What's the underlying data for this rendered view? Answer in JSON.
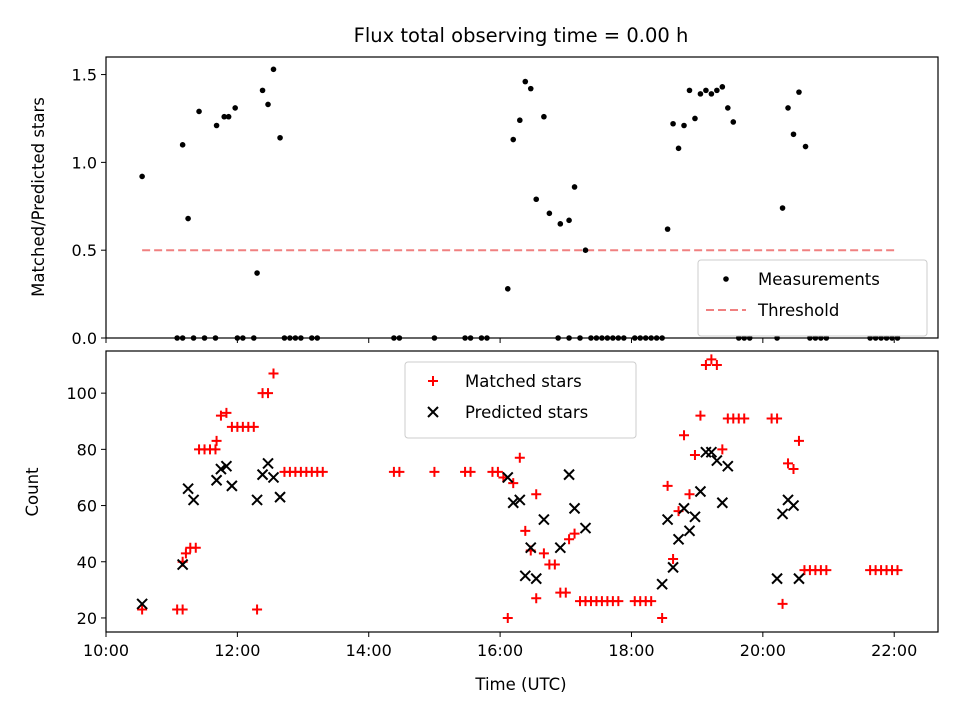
{
  "chart_data": [
    {
      "type": "scatter",
      "title": "Flux total observing time = 0.00 h",
      "xlabel": "",
      "ylabel": "Matched/Predicted stars",
      "xlim": [
        "10:00",
        "22:40"
      ],
      "ylim": [
        0,
        1.6
      ],
      "yticks": [
        "0.0",
        "0.5",
        "1.0",
        "1.5"
      ],
      "grid": false,
      "legend_position": "lower-right",
      "series": [
        {
          "name": "Measurements",
          "marker": "dot",
          "color": "#000000",
          "points": [
            [
              "10:33",
              0.92
            ],
            [
              "11:10",
              1.1
            ],
            [
              "11:15",
              0.68
            ],
            [
              "11:25",
              1.29
            ],
            [
              "11:41",
              1.21
            ],
            [
              "11:48",
              1.26
            ],
            [
              "11:52",
              1.26
            ],
            [
              "11:58",
              1.31
            ],
            [
              "12:18",
              0.37
            ],
            [
              "12:23",
              1.41
            ],
            [
              "12:28",
              1.33
            ],
            [
              "12:33",
              1.53
            ],
            [
              "12:39",
              1.14
            ],
            [
              "16:07",
              0.28
            ],
            [
              "16:12",
              1.13
            ],
            [
              "16:18",
              1.24
            ],
            [
              "16:23",
              1.46
            ],
            [
              "16:28",
              1.42
            ],
            [
              "16:33",
              0.79
            ],
            [
              "16:40",
              1.26
            ],
            [
              "16:45",
              0.71
            ],
            [
              "16:55",
              0.65
            ],
            [
              "17:03",
              0.67
            ],
            [
              "17:08",
              0.86
            ],
            [
              "17:18",
              0.5
            ],
            [
              "18:33",
              0.62
            ],
            [
              "18:38",
              1.22
            ],
            [
              "18:43",
              1.08
            ],
            [
              "18:48",
              1.21
            ],
            [
              "18:53",
              1.41
            ],
            [
              "18:58",
              1.25
            ],
            [
              "19:03",
              1.39
            ],
            [
              "19:08",
              1.41
            ],
            [
              "19:13",
              1.39
            ],
            [
              "19:18",
              1.41
            ],
            [
              "19:23",
              1.43
            ],
            [
              "19:28",
              1.31
            ],
            [
              "19:33",
              1.23
            ],
            [
              "20:18",
              0.74
            ],
            [
              "20:23",
              1.31
            ],
            [
              "20:28",
              1.16
            ],
            [
              "20:33",
              1.4
            ],
            [
              "20:39",
              1.09
            ],
            [
              "11:05",
              0
            ],
            [
              "11:10",
              0
            ],
            [
              "11:20",
              0
            ],
            [
              "11:30",
              0
            ],
            [
              "11:40",
              0
            ],
            [
              "12:00",
              0
            ],
            [
              "12:05",
              0
            ],
            [
              "12:15",
              0
            ],
            [
              "12:43",
              0
            ],
            [
              "12:48",
              0
            ],
            [
              "12:53",
              0
            ],
            [
              "12:58",
              0
            ],
            [
              "13:08",
              0
            ],
            [
              "13:13",
              0
            ],
            [
              "14:23",
              0
            ],
            [
              "14:28",
              0
            ],
            [
              "15:00",
              0
            ],
            [
              "15:28",
              0
            ],
            [
              "15:33",
              0
            ],
            [
              "15:43",
              0
            ],
            [
              "15:48",
              0
            ],
            [
              "16:53",
              0
            ],
            [
              "17:03",
              0
            ],
            [
              "17:13",
              0
            ],
            [
              "17:23",
              0
            ],
            [
              "17:28",
              0
            ],
            [
              "17:33",
              0
            ],
            [
              "17:38",
              0
            ],
            [
              "17:43",
              0
            ],
            [
              "17:48",
              0
            ],
            [
              "17:53",
              0
            ],
            [
              "18:03",
              0
            ],
            [
              "18:08",
              0
            ],
            [
              "18:13",
              0
            ],
            [
              "18:18",
              0
            ],
            [
              "18:23",
              0
            ],
            [
              "18:28",
              0
            ],
            [
              "19:38",
              0
            ],
            [
              "19:43",
              0
            ],
            [
              "19:48",
              0
            ],
            [
              "20:13",
              0
            ],
            [
              "20:43",
              0
            ],
            [
              "20:48",
              0
            ],
            [
              "20:53",
              0
            ],
            [
              "20:58",
              0
            ],
            [
              "21:38",
              0
            ],
            [
              "21:43",
              0
            ],
            [
              "21:48",
              0
            ],
            [
              "21:53",
              0
            ],
            [
              "21:58",
              0
            ],
            [
              "22:03",
              0
            ]
          ]
        },
        {
          "name": "Threshold",
          "line": "dashed",
          "color": "#f08080",
          "x": [
            "10:33",
            "22:03"
          ],
          "y": [
            0.5,
            0.5
          ]
        }
      ]
    },
    {
      "type": "scatter",
      "title": "",
      "xlabel": "Time (UTC)",
      "ylabel": "Count",
      "xlim": [
        "10:00",
        "22:40"
      ],
      "ylim": [
        15,
        115
      ],
      "xticks": [
        "10:00",
        "12:00",
        "14:00",
        "16:00",
        "18:00",
        "20:00",
        "22:00"
      ],
      "yticks": [
        "20",
        "40",
        "60",
        "80",
        "100"
      ],
      "grid": false,
      "legend_position": "upper-center",
      "series": [
        {
          "name": "Matched stars",
          "marker": "plus",
          "color": "#ff0000",
          "points": [
            [
              "10:33",
              23
            ],
            [
              "11:05",
              23
            ],
            [
              "11:10",
              23
            ],
            [
              "11:10",
              40
            ],
            [
              "11:13",
              43
            ],
            [
              "11:17",
              45
            ],
            [
              "11:22",
              45
            ],
            [
              "11:25",
              80
            ],
            [
              "11:30",
              80
            ],
            [
              "11:35",
              80
            ],
            [
              "11:40",
              80
            ],
            [
              "11:41",
              83
            ],
            [
              "11:45",
              92
            ],
            [
              "11:50",
              93
            ],
            [
              "11:55",
              88
            ],
            [
              "12:00",
              88
            ],
            [
              "12:05",
              88
            ],
            [
              "12:10",
              88
            ],
            [
              "12:15",
              88
            ],
            [
              "12:18",
              23
            ],
            [
              "12:23",
              100
            ],
            [
              "12:28",
              100
            ],
            [
              "12:33",
              107
            ],
            [
              "12:43",
              72
            ],
            [
              "12:48",
              72
            ],
            [
              "12:53",
              72
            ],
            [
              "12:58",
              72
            ],
            [
              "13:03",
              72
            ],
            [
              "13:08",
              72
            ],
            [
              "13:13",
              72
            ],
            [
              "13:18",
              72
            ],
            [
              "14:23",
              72
            ],
            [
              "14:28",
              72
            ],
            [
              "15:00",
              72
            ],
            [
              "15:28",
              72
            ],
            [
              "15:33",
              72
            ],
            [
              "15:53",
              72
            ],
            [
              "15:58",
              72
            ],
            [
              "16:03",
              70
            ],
            [
              "16:07",
              20
            ],
            [
              "16:12",
              68
            ],
            [
              "16:18",
              77
            ],
            [
              "16:23",
              51
            ],
            [
              "16:28",
              44
            ],
            [
              "16:33",
              64
            ],
            [
              "16:33",
              27
            ],
            [
              "16:40",
              43
            ],
            [
              "16:45",
              39
            ],
            [
              "16:50",
              39
            ],
            [
              "16:55",
              29
            ],
            [
              "17:00",
              29
            ],
            [
              "17:03",
              48
            ],
            [
              "17:08",
              50
            ],
            [
              "17:13",
              26
            ],
            [
              "17:18",
              26
            ],
            [
              "17:23",
              26
            ],
            [
              "17:28",
              26
            ],
            [
              "17:33",
              26
            ],
            [
              "17:38",
              26
            ],
            [
              "17:43",
              26
            ],
            [
              "17:48",
              26
            ],
            [
              "18:03",
              26
            ],
            [
              "18:08",
              26
            ],
            [
              "18:13",
              26
            ],
            [
              "18:18",
              26
            ],
            [
              "18:28",
              20
            ],
            [
              "18:33",
              67
            ],
            [
              "18:38",
              41
            ],
            [
              "18:43",
              58
            ],
            [
              "18:48",
              85
            ],
            [
              "18:53",
              64
            ],
            [
              "18:58",
              78
            ],
            [
              "19:03",
              92
            ],
            [
              "19:08",
              110
            ],
            [
              "19:13",
              112
            ],
            [
              "19:18",
              110
            ],
            [
              "19:23",
              80
            ],
            [
              "19:28",
              91
            ],
            [
              "19:33",
              91
            ],
            [
              "19:38",
              91
            ],
            [
              "19:43",
              91
            ],
            [
              "20:08",
              91
            ],
            [
              "20:13",
              91
            ],
            [
              "20:18",
              25
            ],
            [
              "20:23",
              75
            ],
            [
              "20:28",
              73
            ],
            [
              "20:33",
              83
            ],
            [
              "20:38",
              37
            ],
            [
              "20:43",
              37
            ],
            [
              "20:48",
              37
            ],
            [
              "20:53",
              37
            ],
            [
              "20:58",
              37
            ],
            [
              "21:38",
              37
            ],
            [
              "21:43",
              37
            ],
            [
              "21:48",
              37
            ],
            [
              "21:53",
              37
            ],
            [
              "21:58",
              37
            ],
            [
              "22:03",
              37
            ]
          ]
        },
        {
          "name": "Predicted stars",
          "marker": "x",
          "color": "#000000",
          "points": [
            [
              "10:33",
              25
            ],
            [
              "11:10",
              39
            ],
            [
              "11:15",
              66
            ],
            [
              "11:20",
              62
            ],
            [
              "11:41",
              69
            ],
            [
              "11:45",
              73
            ],
            [
              "11:50",
              74
            ],
            [
              "11:55",
              67
            ],
            [
              "12:18",
              62
            ],
            [
              "12:23",
              71
            ],
            [
              "12:28",
              75
            ],
            [
              "12:33",
              70
            ],
            [
              "12:39",
              63
            ],
            [
              "16:07",
              70
            ],
            [
              "16:12",
              61
            ],
            [
              "16:18",
              62
            ],
            [
              "16:23",
              35
            ],
            [
              "16:28",
              45
            ],
            [
              "16:33",
              34
            ],
            [
              "16:40",
              55
            ],
            [
              "16:55",
              45
            ],
            [
              "17:03",
              71
            ],
            [
              "17:08",
              59
            ],
            [
              "17:18",
              52
            ],
            [
              "18:28",
              32
            ],
            [
              "18:33",
              55
            ],
            [
              "18:38",
              38
            ],
            [
              "18:43",
              48
            ],
            [
              "18:48",
              59
            ],
            [
              "18:53",
              51
            ],
            [
              "18:58",
              56
            ],
            [
              "19:03",
              65
            ],
            [
              "19:08",
              79
            ],
            [
              "19:13",
              79
            ],
            [
              "19:18",
              76
            ],
            [
              "19:23",
              61
            ],
            [
              "19:28",
              74
            ],
            [
              "20:13",
              34
            ],
            [
              "20:18",
              57
            ],
            [
              "20:23",
              62
            ],
            [
              "20:28",
              60
            ],
            [
              "20:33",
              34
            ]
          ]
        }
      ]
    }
  ]
}
